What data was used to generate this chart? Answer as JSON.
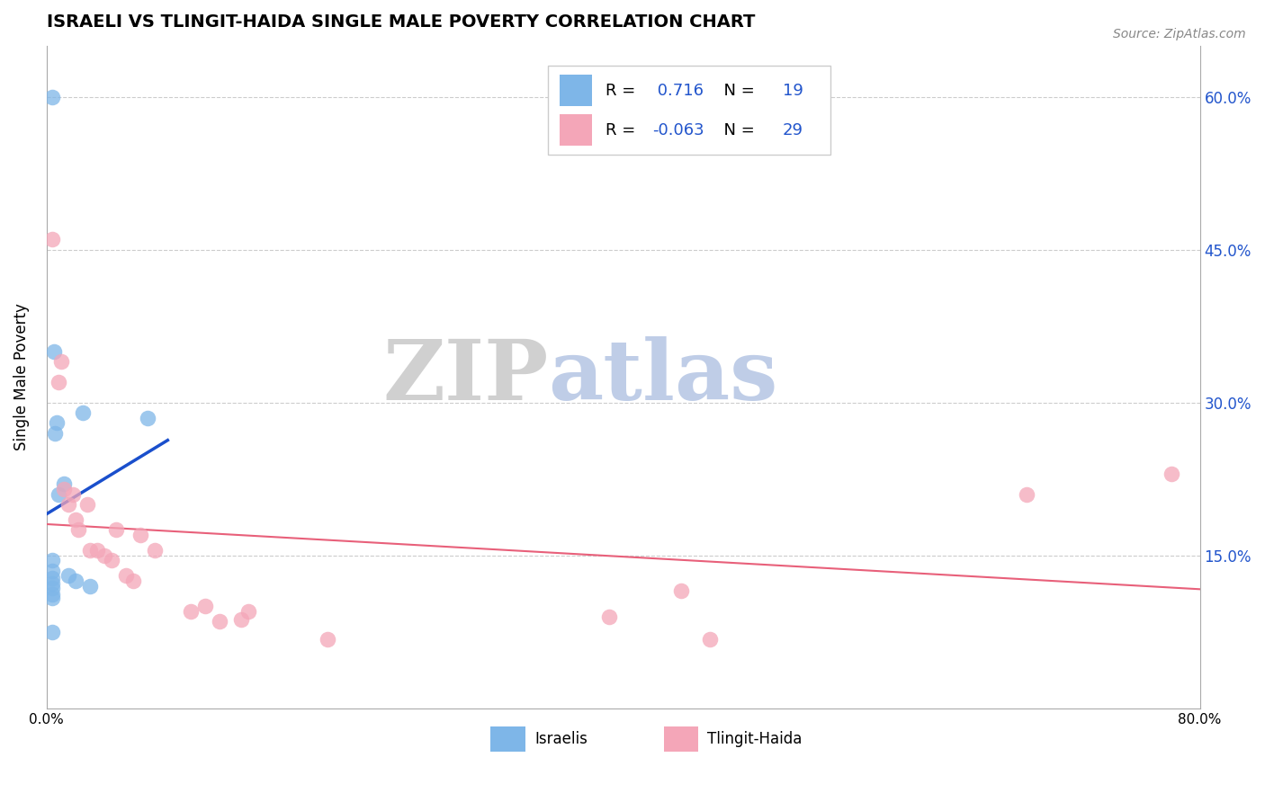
{
  "title": "ISRAELI VS TLINGIT-HAIDA SINGLE MALE POVERTY CORRELATION CHART",
  "source": "Source: ZipAtlas.com",
  "ylabel": "Single Male Poverty",
  "xlim": [
    0.0,
    0.8
  ],
  "ylim": [
    0.0,
    0.65
  ],
  "y_tick_labels_right": [
    "60.0%",
    "45.0%",
    "30.0%",
    "15.0%"
  ],
  "y_tick_vals_right": [
    0.6,
    0.45,
    0.3,
    0.15
  ],
  "israeli_color": "#7EB6E8",
  "tlingit_color": "#F4A6B8",
  "israeli_line_color": "#1a4fcc",
  "tlingit_line_color": "#e8607a",
  "R_israeli": 0.716,
  "N_israeli": 19,
  "R_tlingit": -0.063,
  "N_tlingit": 29,
  "background_color": "#ffffff",
  "grid_color": "#cccccc",
  "israeli_points": [
    [
      0.004,
      0.6
    ],
    [
      0.004,
      0.135
    ],
    [
      0.004,
      0.128
    ],
    [
      0.004,
      0.122
    ],
    [
      0.004,
      0.118
    ],
    [
      0.004,
      0.112
    ],
    [
      0.004,
      0.108
    ],
    [
      0.004,
      0.075
    ],
    [
      0.005,
      0.35
    ],
    [
      0.006,
      0.27
    ],
    [
      0.007,
      0.28
    ],
    [
      0.008,
      0.21
    ],
    [
      0.012,
      0.22
    ],
    [
      0.015,
      0.13
    ],
    [
      0.02,
      0.125
    ],
    [
      0.025,
      0.29
    ],
    [
      0.03,
      0.12
    ],
    [
      0.07,
      0.285
    ],
    [
      0.004,
      0.145
    ]
  ],
  "tlingit_points": [
    [
      0.004,
      0.46
    ],
    [
      0.008,
      0.32
    ],
    [
      0.01,
      0.34
    ],
    [
      0.012,
      0.215
    ],
    [
      0.015,
      0.2
    ],
    [
      0.018,
      0.21
    ],
    [
      0.02,
      0.185
    ],
    [
      0.022,
      0.175
    ],
    [
      0.028,
      0.2
    ],
    [
      0.03,
      0.155
    ],
    [
      0.035,
      0.155
    ],
    [
      0.04,
      0.15
    ],
    [
      0.045,
      0.145
    ],
    [
      0.048,
      0.175
    ],
    [
      0.055,
      0.13
    ],
    [
      0.06,
      0.125
    ],
    [
      0.065,
      0.17
    ],
    [
      0.075,
      0.155
    ],
    [
      0.1,
      0.095
    ],
    [
      0.11,
      0.1
    ],
    [
      0.12,
      0.085
    ],
    [
      0.135,
      0.087
    ],
    [
      0.14,
      0.095
    ],
    [
      0.195,
      0.068
    ],
    [
      0.39,
      0.09
    ],
    [
      0.44,
      0.115
    ],
    [
      0.46,
      0.068
    ],
    [
      0.68,
      0.21
    ],
    [
      0.78,
      0.23
    ]
  ]
}
